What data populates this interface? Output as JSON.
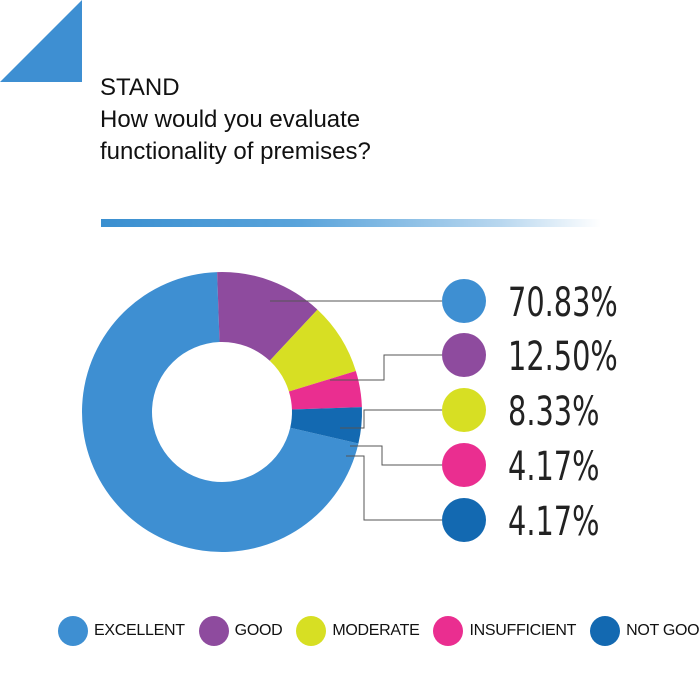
{
  "header": {
    "line1": "STAND",
    "line2": "How would you evaluate",
    "line3": "functionality of premises?"
  },
  "chart_data": {
    "type": "pie",
    "variant": "donut",
    "categories": [
      "EXCELLENT",
      "GOOD",
      "MODERATE",
      "INSUFFICIENT",
      "NOT GOOD"
    ],
    "values": [
      70.83,
      12.5,
      8.33,
      4.17,
      4.17
    ],
    "value_labels": [
      "70.83%",
      "12.50%",
      "8.33%",
      "4.17%",
      "4.17%"
    ],
    "colors": [
      "#3e8fd2",
      "#8e4b9e",
      "#d7df23",
      "#ea2e90",
      "#1369b1"
    ],
    "legend_placement": "bottom"
  }
}
